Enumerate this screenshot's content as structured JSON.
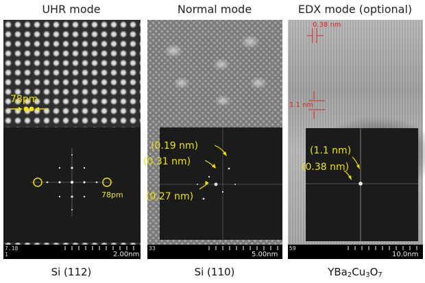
{
  "panels": [
    {
      "title": "UHR mode",
      "caption": "Si (112)",
      "counter": "7.18",
      "counter2": "1",
      "scale": "2.00nm",
      "annotations": {
        "spacing": "78pm",
        "spacing_fft": "78pm"
      }
    },
    {
      "title": "Normal mode",
      "caption": "Si (110)",
      "counter": "33",
      "scale": "5.00nm",
      "annotations": {
        "a": "(0.19 nm)",
        "b": "(0.31 nm)",
        "c": "(0.27 nm)"
      }
    },
    {
      "title": "EDX mode (optional)",
      "caption_parts": [
        "YBa",
        "2",
        "Cu",
        "3",
        "O",
        "7"
      ],
      "counter": "59",
      "scale": "10.0nm",
      "annotations": {
        "h": "0.38 nm",
        "v": "1.1 nm",
        "a": "(1.1 nm)",
        "b": "(0.38 nm)"
      }
    }
  ],
  "colors": {
    "annotation": "#f1e400",
    "measure": "#e0231d"
  }
}
